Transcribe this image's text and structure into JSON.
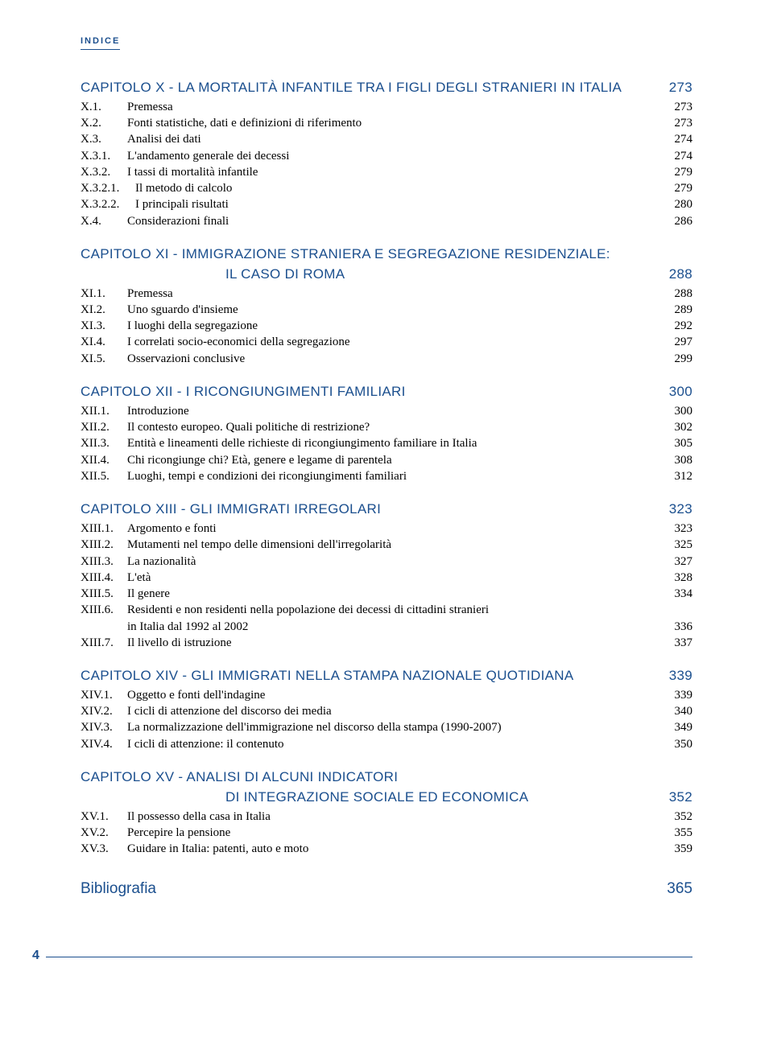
{
  "header": "INDICE",
  "page_number": "4",
  "colors": {
    "accent": "#1b4f8e",
    "text": "#000000",
    "background": "#ffffff"
  },
  "typography": {
    "body_family": "Georgia, serif",
    "heading_family": "Arial, Helvetica, sans-serif",
    "body_size_pt": 11,
    "heading_size_pt": 13
  },
  "chapters": [
    {
      "title": "CAPITOLO X - LA MORTALITÀ INFANTILE TRA I FIGLI DEGLI STRANIERI IN ITALIA",
      "page": "273",
      "entries": [
        {
          "key": "X.1.",
          "label": "Premessa",
          "page": "273"
        },
        {
          "key": "X.2.",
          "label": "Fonti statistiche, dati e definizioni di riferimento",
          "page": "273"
        },
        {
          "key": "X.3.",
          "label": "Analisi dei dati",
          "page": "274"
        },
        {
          "key": "X.3.1.",
          "label": "L'andamento generale dei decessi",
          "page": "274"
        },
        {
          "key": "X.3.2.",
          "label": "I tassi di mortalità infantile",
          "page": "279"
        },
        {
          "key": "X.3.2.1.",
          "label": "Il metodo di calcolo",
          "page": "279",
          "wide_key": true
        },
        {
          "key": "X.3.2.2.",
          "label": "I principali risultati",
          "page": "280",
          "wide_key": true
        },
        {
          "key": "X.4.",
          "label": "Considerazioni finali",
          "page": "286"
        }
      ]
    },
    {
      "title": "CAPITOLO XI - IMMIGRAZIONE STRANIERA E SEGREGAZIONE RESIDENZIALE:",
      "title_sub": "IL CASO DI ROMA",
      "page": "288",
      "entries": [
        {
          "key": "XI.1.",
          "label": "Premessa",
          "page": "288"
        },
        {
          "key": "XI.2.",
          "label": "Uno sguardo d'insieme",
          "page": "289"
        },
        {
          "key": "XI.3.",
          "label": "I luoghi della segregazione",
          "page": "292"
        },
        {
          "key": "XI.4.",
          "label": "I correlati socio-economici della segregazione",
          "page": "297"
        },
        {
          "key": "XI.5.",
          "label": "Osservazioni conclusive",
          "page": "299"
        }
      ]
    },
    {
      "title": "CAPITOLO XII - I RICONGIUNGIMENTI FAMILIARI",
      "page": "300",
      "entries": [
        {
          "key": "XII.1.",
          "label": "Introduzione",
          "page": "300"
        },
        {
          "key": "XII.2.",
          "label": "Il contesto europeo. Quali politiche di restrizione?",
          "page": "302"
        },
        {
          "key": "XII.3.",
          "label": "Entità e lineamenti delle richieste di ricongiungimento familiare in Italia",
          "page": "305"
        },
        {
          "key": "XII.4.",
          "label": "Chi ricongiunge chi? Età, genere e legame di parentela",
          "page": "308"
        },
        {
          "key": "XII.5.",
          "label": "Luoghi, tempi e condizioni dei ricongiungimenti familiari",
          "page": "312"
        }
      ]
    },
    {
      "title": "CAPITOLO XIII - GLI IMMIGRATI IRREGOLARI",
      "page": "323",
      "entries": [
        {
          "key": "XIII.1.",
          "label": "Argomento e fonti",
          "page": "323"
        },
        {
          "key": "XIII.2.",
          "label": "Mutamenti nel tempo delle dimensioni dell'irregolarità",
          "page": "325"
        },
        {
          "key": "XIII.3.",
          "label": "La nazionalità",
          "page": "327"
        },
        {
          "key": "XIII.4.",
          "label": "L'età",
          "page": "328"
        },
        {
          "key": "XIII.5.",
          "label": "Il genere",
          "page": "334"
        },
        {
          "key": "XIII.6.",
          "label": "Residenti e non residenti nella popolazione dei decessi di cittadini stranieri",
          "page": "",
          "cont": "in Italia dal 1992 al 2002",
          "cont_page": "336"
        },
        {
          "key": "XIII.7.",
          "label": "Il livello di istruzione",
          "page": "337"
        }
      ]
    },
    {
      "title": "CAPITOLO XIV - GLI IMMIGRATI NELLA STAMPA NAZIONALE QUOTIDIANA",
      "page": "339",
      "entries": [
        {
          "key": "XIV.1.",
          "label": "Oggetto e fonti dell'indagine",
          "page": "339"
        },
        {
          "key": "XIV.2.",
          "label": "I cicli di attenzione del discorso dei media",
          "page": "340"
        },
        {
          "key": "XIV.3.",
          "label": "La normalizzazione dell'immigrazione nel discorso della stampa (1990-2007)",
          "page": "349"
        },
        {
          "key": "XIV.4.",
          "label": "I cicli di attenzione: il contenuto",
          "page": "350"
        }
      ]
    },
    {
      "title": "CAPITOLO XV - ANALISI DI ALCUNI INDICATORI",
      "title_sub": "DI INTEGRAZIONE SOCIALE ED ECONOMICA",
      "page": "352",
      "entries": [
        {
          "key": "XV.1.",
          "label": "Il possesso della casa in Italia",
          "page": "352"
        },
        {
          "key": "XV.2.",
          "label": "Percepire la pensione",
          "page": "355"
        },
        {
          "key": "XV.3.",
          "label": "Guidare in Italia: patenti, auto e moto",
          "page": "359"
        }
      ]
    }
  ],
  "bibliography": {
    "label": "Bibliografia",
    "page": "365"
  }
}
